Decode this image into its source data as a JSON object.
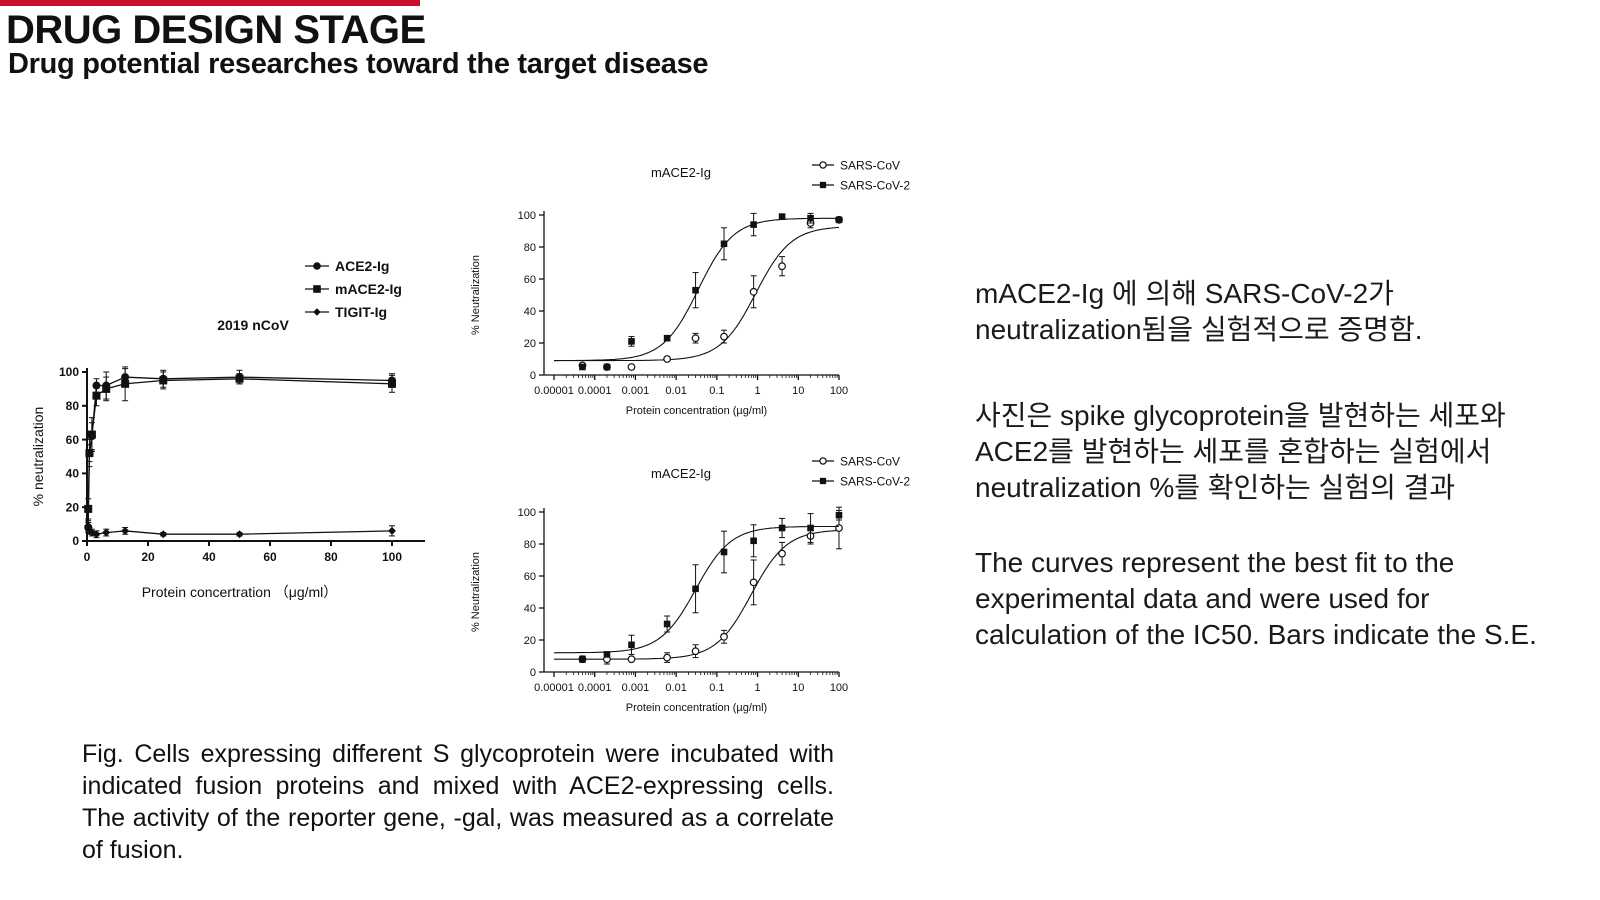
{
  "header": {
    "title": "DRUG DESIGN STAGE",
    "subtitle": "Drug potential researches toward the target disease",
    "accent_color": "#c8102e"
  },
  "caption": "Fig. Cells expressing different S glycoprotein were incubated with indicated fusion proteins and mixed with ACE2-expressing cells. The activity of the reporter gene, -gal, was measured as a correlate of fusion.",
  "notes": [
    "mACE2-Ig 에 의해 SARS-CoV-2가\n neutralization됨을 실험적으로 증명함.",
    "사진은 spike glycoprotein을 발현하는 세포와\nACE2를 발현하는 세포를 혼합하는 실험에서\nneutralization %를 확인하는 실험의 결과",
    "The curves represent the best fit to the\nexperimental data and were used for\ncalculation of the IC50. Bars indicate the S.E."
  ],
  "chart_data": [
    {
      "type": "scatter",
      "title": "2019 nCoV",
      "xlabel": "Protein concertration （μg/ml）",
      "ylabel": "% neutralization",
      "xlim": [
        0,
        100
      ],
      "ylim": [
        0,
        100
      ],
      "x_scale": "linear",
      "xticks": [
        0,
        20,
        40,
        60,
        80,
        100
      ],
      "yticks": [
        0,
        20,
        40,
        60,
        80,
        100
      ],
      "grid": false,
      "legend_position": "top-right",
      "series": [
        {
          "name": "ACE2-Ig",
          "marker": "circle",
          "fit_curve": true,
          "x": [
            0.4,
            0.8,
            1.6,
            3.1,
            6.3,
            12.5,
            25,
            50,
            100
          ],
          "y": [
            8,
            52,
            62,
            92,
            92,
            97,
            96,
            97,
            95
          ],
          "err": [
            3,
            5,
            8,
            4,
            8,
            5,
            5,
            4,
            4
          ]
        },
        {
          "name": "mACE2-Ig",
          "marker": "square",
          "fit_curve": true,
          "x": [
            0.4,
            0.8,
            1.6,
            3.1,
            6.3,
            12.5,
            25,
            50,
            100
          ],
          "y": [
            19,
            52,
            63,
            86,
            90,
            93,
            95,
            96,
            93
          ],
          "err": [
            6,
            8,
            10,
            6,
            7,
            10,
            5,
            3,
            5
          ]
        },
        {
          "name": "TIGIT-Ig",
          "marker": "diamond",
          "fit_curve": true,
          "x": [
            0.4,
            0.8,
            1.6,
            3.1,
            6.3,
            12.5,
            25,
            50,
            100
          ],
          "y": [
            9,
            6,
            5,
            4,
            5,
            6,
            4,
            4,
            6
          ],
          "err": [
            3,
            2,
            2,
            2,
            2,
            2,
            1,
            1,
            3
          ]
        }
      ]
    },
    {
      "type": "scatter",
      "title": "mACE2-Ig",
      "xlabel": "Protein concentration (µg/ml)",
      "ylabel": "% Neutralization",
      "x_scale": "log",
      "xlim": [
        1e-05,
        100
      ],
      "ylim": [
        0,
        100
      ],
      "xticks": [
        1e-05,
        0.0001,
        0.001,
        0.01,
        0.1,
        1,
        10,
        100
      ],
      "xticklabels": [
        "0.00001",
        "0.0001",
        "0.001",
        "0.01",
        "0.1",
        "1",
        "10",
        "100"
      ],
      "yticks": [
        0,
        20,
        40,
        60,
        80,
        100
      ],
      "grid": false,
      "legend_position": "top-right",
      "series": [
        {
          "name": "SARS-CoV",
          "marker": "open-circle",
          "x": [
            5e-05,
            0.0002,
            0.0008,
            0.006,
            0.03,
            0.15,
            0.8,
            4,
            20,
            100
          ],
          "y": [
            6,
            5,
            5,
            10,
            23,
            24,
            52,
            68,
            95,
            97
          ],
          "err": [
            1,
            1,
            1,
            1,
            3,
            4,
            10,
            6,
            3,
            1
          ],
          "fit": {
            "bottom": 9,
            "top": 93,
            "ec50": 0.9,
            "hill": 1.0
          }
        },
        {
          "name": "SARS-CoV-2",
          "marker": "square",
          "x": [
            5e-05,
            0.0002,
            0.0008,
            0.006,
            0.03,
            0.15,
            0.8,
            4,
            20,
            100
          ],
          "y": [
            5,
            5,
            21,
            23,
            53,
            82,
            94,
            99,
            98,
            97
          ],
          "err": [
            1,
            1,
            3,
            1,
            11,
            10,
            7,
            1,
            3,
            1
          ],
          "fit": {
            "bottom": 9,
            "top": 98,
            "ec50": 0.035,
            "hill": 1.0
          }
        }
      ]
    },
    {
      "type": "scatter",
      "title": "mACE2-Ig",
      "xlabel": "Protein concentration (µg/ml)",
      "ylabel": "% Neutralization",
      "x_scale": "log",
      "xlim": [
        1e-05,
        100
      ],
      "ylim": [
        0,
        100
      ],
      "xticks": [
        1e-05,
        0.0001,
        0.001,
        0.01,
        0.1,
        1,
        10,
        100
      ],
      "xticklabels": [
        "0.00001",
        "0.0001",
        "0.001",
        "0.01",
        "0.1",
        "1",
        "10",
        "100"
      ],
      "yticks": [
        0,
        20,
        40,
        60,
        80,
        100
      ],
      "grid": false,
      "legend_position": "top-right",
      "series": [
        {
          "name": "SARS-CoV",
          "marker": "open-circle",
          "x": [
            5e-05,
            0.0002,
            0.0008,
            0.006,
            0.03,
            0.15,
            0.8,
            4,
            20,
            100
          ],
          "y": [
            8,
            8,
            8,
            9,
            13,
            22,
            56,
            74,
            85,
            90
          ],
          "err": [
            2,
            3,
            1,
            3,
            4,
            4,
            14,
            7,
            5,
            13
          ],
          "fit": {
            "bottom": 8,
            "top": 89,
            "ec50": 0.7,
            "hill": 1.0
          }
        },
        {
          "name": "SARS-CoV-2",
          "marker": "square",
          "x": [
            5e-05,
            0.0002,
            0.0008,
            0.006,
            0.03,
            0.15,
            0.8,
            4,
            20,
            100
          ],
          "y": [
            8,
            11,
            17,
            30,
            52,
            75,
            82,
            90,
            90,
            98
          ],
          "err": [
            1,
            1,
            6,
            5,
            15,
            13,
            10,
            6,
            9,
            3
          ],
          "fit": {
            "bottom": 12,
            "top": 91,
            "ec50": 0.03,
            "hill": 1.0
          }
        }
      ]
    }
  ]
}
